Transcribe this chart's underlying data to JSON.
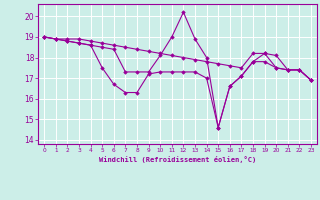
{
  "title": "",
  "xlabel": "Windchill (Refroidissement éolien,°C)",
  "ylabel": "",
  "bg_color": "#cceee8",
  "line_color": "#990099",
  "grid_color": "#ffffff",
  "ylim": [
    13.8,
    20.6
  ],
  "xlim": [
    -0.5,
    23.5
  ],
  "yticks": [
    14,
    15,
    16,
    17,
    18,
    19,
    20
  ],
  "xticks": [
    0,
    1,
    2,
    3,
    4,
    5,
    6,
    7,
    8,
    9,
    10,
    11,
    12,
    13,
    14,
    15,
    16,
    17,
    18,
    19,
    20,
    21,
    22,
    23
  ],
  "series": [
    [
      19.0,
      18.9,
      18.9,
      18.9,
      18.8,
      18.7,
      18.6,
      18.5,
      18.4,
      18.3,
      18.2,
      18.1,
      18.0,
      17.9,
      17.8,
      17.7,
      17.6,
      17.5,
      18.2,
      18.2,
      18.1,
      17.4,
      17.4,
      16.9
    ],
    [
      19.0,
      18.9,
      18.8,
      18.7,
      18.6,
      18.5,
      18.4,
      17.3,
      17.3,
      17.3,
      18.1,
      19.0,
      20.2,
      18.9,
      18.0,
      14.6,
      16.6,
      17.1,
      17.8,
      18.2,
      17.5,
      17.4,
      17.4,
      16.9
    ],
    [
      19.0,
      18.9,
      18.8,
      18.7,
      18.6,
      17.5,
      16.7,
      16.3,
      16.3,
      17.2,
      17.3,
      17.3,
      17.3,
      17.3,
      17.0,
      14.6,
      16.6,
      17.1,
      17.8,
      17.8,
      17.5,
      17.4,
      17.4,
      16.9
    ]
  ],
  "figsize": [
    3.2,
    2.0
  ],
  "dpi": 100
}
